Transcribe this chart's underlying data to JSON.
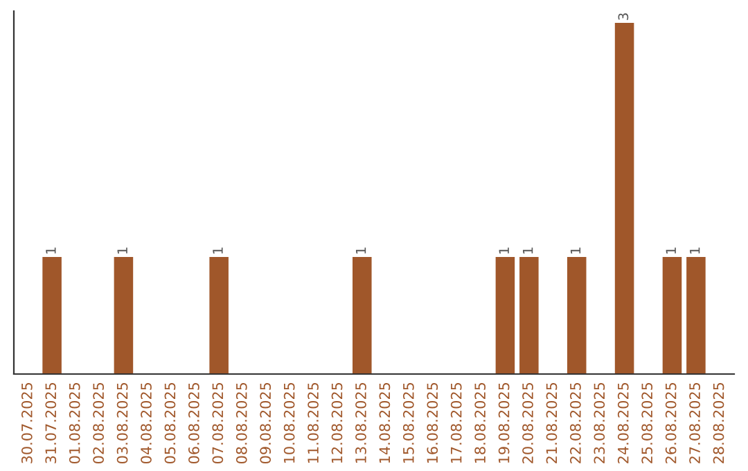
{
  "chart_data": {
    "type": "bar",
    "categories": [
      "30.07.2025",
      "31.07.2025",
      "01.08.2025",
      "02.08.2025",
      "03.08.2025",
      "04.08.2025",
      "05.08.2025",
      "06.08.2025",
      "07.08.2025",
      "08.08.2025",
      "09.08.2025",
      "10.08.2025",
      "11.08.2025",
      "12.08.2025",
      "13.08.2025",
      "14.08.2025",
      "15.08.2025",
      "16.08.2025",
      "17.08.2025",
      "18.08.2025",
      "19.08.2025",
      "20.08.2025",
      "21.08.2025",
      "22.08.2025",
      "23.08.2025",
      "24.08.2025",
      "25.08.2025",
      "26.08.2025",
      "27.08.2025",
      "28.08.2025"
    ],
    "values": [
      0,
      1,
      0,
      0,
      1,
      0,
      0,
      0,
      1,
      0,
      0,
      0,
      0,
      0,
      1,
      0,
      0,
      0,
      0,
      0,
      1,
      1,
      0,
      1,
      0,
      3,
      0,
      1,
      1,
      0
    ],
    "value_labels": [
      null,
      "1",
      null,
      null,
      "1",
      null,
      null,
      null,
      "1",
      null,
      null,
      null,
      null,
      null,
      "1",
      null,
      null,
      null,
      null,
      null,
      "1",
      "1",
      null,
      "1",
      null,
      "3",
      null,
      "1",
      "1",
      null
    ],
    "color": "#a0572a",
    "ylim": [
      0,
      3.1
    ],
    "tick_labels": "x",
    "grid": false,
    "legend": false
  }
}
